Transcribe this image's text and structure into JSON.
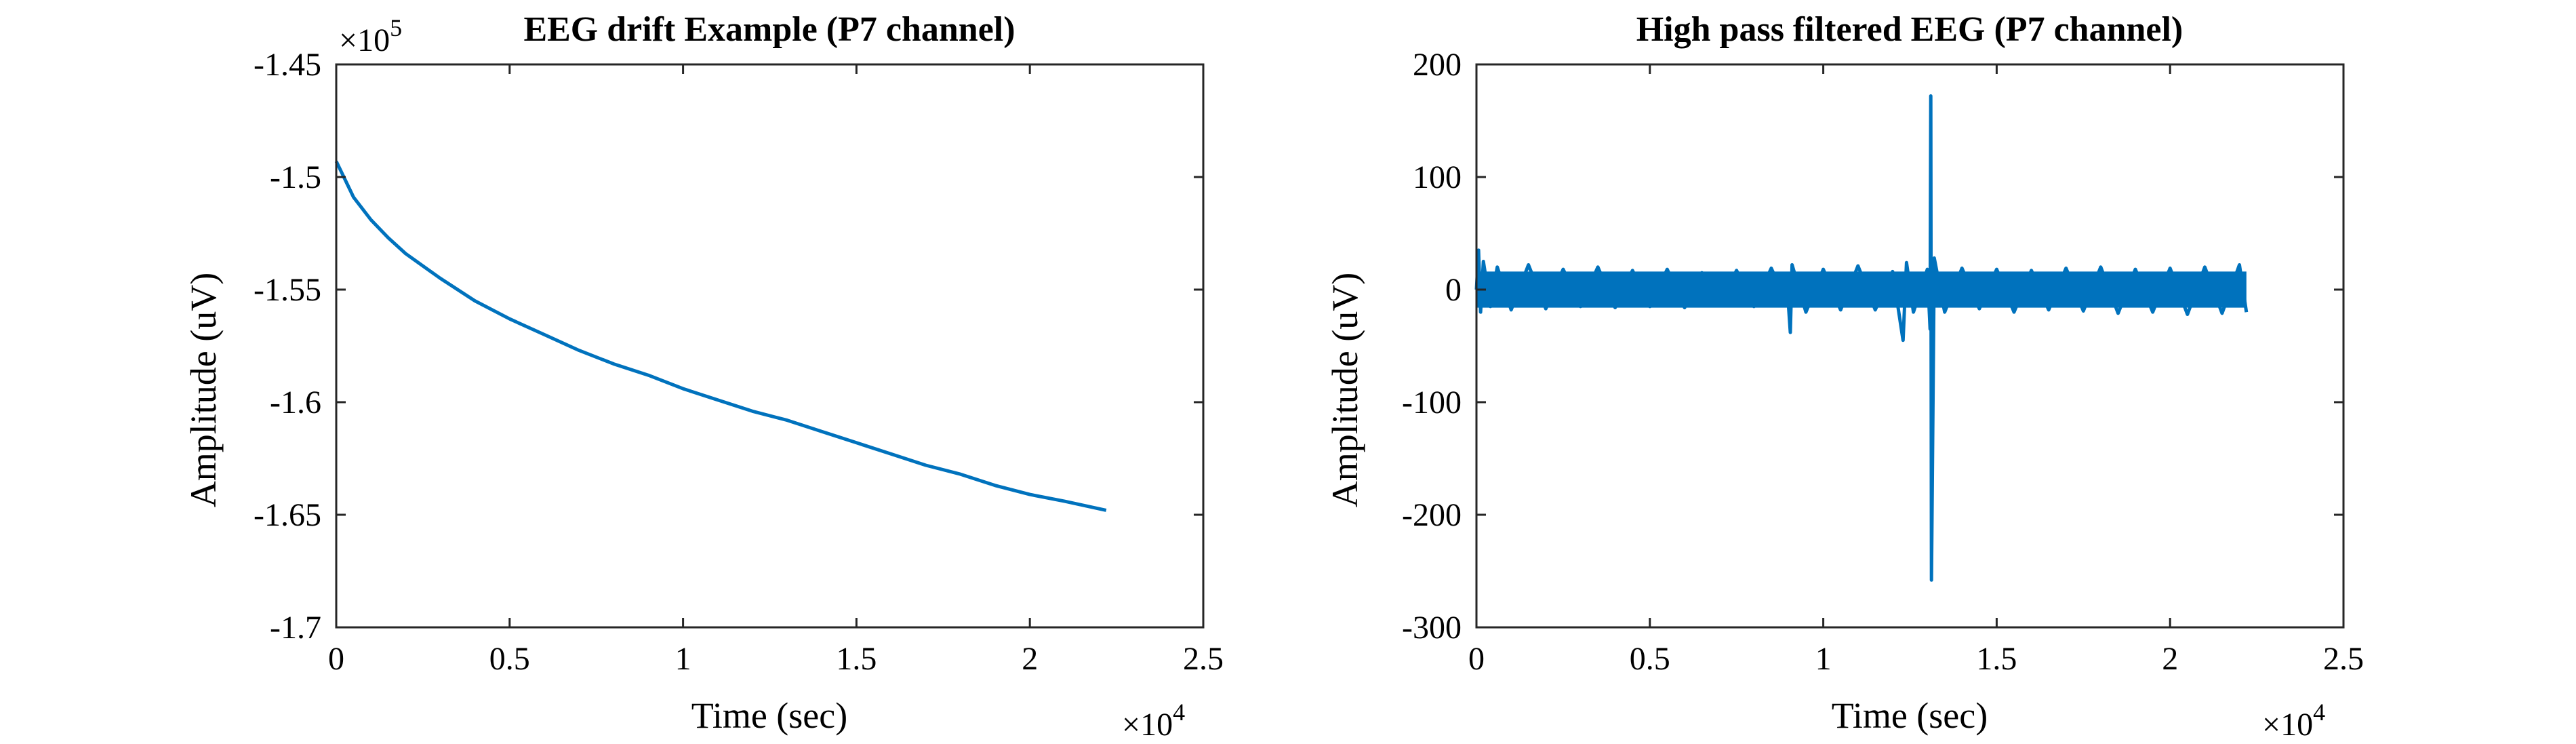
{
  "figure": {
    "background": "#ffffff",
    "line_color": "#0072BD"
  },
  "chart_data": [
    {
      "type": "line",
      "title": "EEG drift Example (P7 channel)",
      "xlabel": "Time (sec)",
      "ylabel": "Amplitude (uV)",
      "xlim": [
        0,
        25000
      ],
      "ylim": [
        -170000,
        -145000
      ],
      "xticks": [
        0,
        5000,
        10000,
        15000,
        20000,
        25000
      ],
      "xtick_labels": [
        "0",
        "0.5",
        "1",
        "1.5",
        "2",
        "2.5"
      ],
      "yticks": [
        -170000,
        -165000,
        -160000,
        -155000,
        -150000,
        -145000
      ],
      "ytick_labels": [
        "-1.7",
        "-1.65",
        "-1.6",
        "-1.55",
        "-1.5",
        "-1.45"
      ],
      "x_multiplier": "×10",
      "x_multiplier_exp": "4",
      "y_multiplier": "×10",
      "y_multiplier_exp": "5",
      "grid": false,
      "series": [
        {
          "color": "#0072BD",
          "x": [
            0,
            500,
            1000,
            1500,
            2000,
            3000,
            4000,
            5000,
            6000,
            7000,
            8000,
            9000,
            10000,
            11000,
            12000,
            13000,
            14000,
            15000,
            16000,
            17000,
            18000,
            19000,
            20000,
            21000,
            22200
          ],
          "y": [
            -149300,
            -150900,
            -151900,
            -152700,
            -153400,
            -154500,
            -155500,
            -156300,
            -157000,
            -157700,
            -158300,
            -158800,
            -159400,
            -159900,
            -160400,
            -160800,
            -161300,
            -161800,
            -162300,
            -162800,
            -163200,
            -163700,
            -164100,
            -164400,
            -164800
          ]
        }
      ]
    },
    {
      "type": "line",
      "title": "High pass filtered EEG (P7 channel)",
      "xlabel": "Time (sec)",
      "ylabel": "Amplitude (uV)",
      "xlim": [
        0,
        25000
      ],
      "ylim": [
        -300,
        200
      ],
      "xticks": [
        0,
        5000,
        10000,
        15000,
        20000,
        25000
      ],
      "xtick_labels": [
        "0",
        "0.5",
        "1",
        "1.5",
        "2",
        "2.5"
      ],
      "yticks": [
        -300,
        -200,
        -100,
        0,
        100,
        200
      ],
      "ytick_labels": [
        "-300",
        "-200",
        "-100",
        "0",
        "100",
        "200"
      ],
      "x_multiplier": "×10",
      "x_multiplier_exp": "4",
      "grid": false,
      "series": [
        {
          "color": "#0072BD",
          "x": [
            0,
            60,
            120,
            200,
            400,
            600,
            1000,
            1500,
            2000,
            2500,
            3000,
            3500,
            4000,
            4500,
            5000,
            5500,
            6000,
            6500,
            7000,
            7500,
            8000,
            8500,
            9000,
            9050,
            9100,
            9500,
            10000,
            10500,
            11000,
            11500,
            12000,
            12300,
            12400,
            12600,
            13000,
            13080,
            13100,
            13120,
            13200,
            13500,
            14000,
            14500,
            15000,
            15500,
            16000,
            16500,
            17000,
            17500,
            18000,
            18500,
            19000,
            19500,
            20000,
            20500,
            21000,
            21500,
            22000,
            22200
          ],
          "y": [
            0,
            35,
            -20,
            25,
            -15,
            20,
            -18,
            22,
            -17,
            18,
            -15,
            20,
            -16,
            17,
            -15,
            18,
            -16,
            15,
            -14,
            17,
            -15,
            19,
            -15,
            -38,
            22,
            -20,
            18,
            -18,
            21,
            -18,
            16,
            -45,
            24,
            -20,
            18,
            -35,
            172,
            -258,
            28,
            -20,
            19,
            -17,
            18,
            -20,
            17,
            -18,
            19,
            -19,
            20,
            -21,
            18,
            -20,
            19,
            -22,
            20,
            -21,
            22,
            -20
          ]
        }
      ]
    }
  ]
}
